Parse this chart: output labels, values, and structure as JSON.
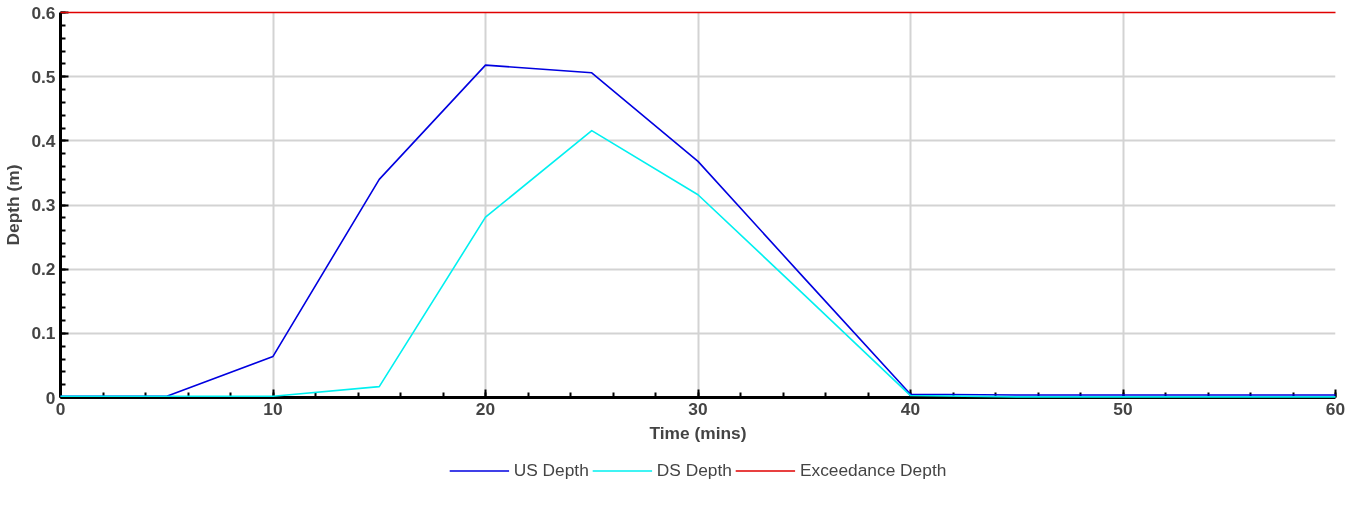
{
  "chart_data": {
    "type": "line",
    "xlabel": "Time (mins)",
    "ylabel": "Depth (m)",
    "x": [
      0,
      5,
      10,
      15,
      20,
      25,
      30,
      35,
      40,
      45,
      50,
      55,
      60
    ],
    "series": [
      {
        "name": "US Depth",
        "color": "#0000e0",
        "values": [
          0.002,
          0.002,
          0.064,
          0.34,
          0.518,
          0.506,
          0.368,
          0.186,
          0.005,
          0.004,
          0.004,
          0.004,
          0.004
        ]
      },
      {
        "name": "DS Depth",
        "color": "#00f0f0",
        "values": [
          0.002,
          0.002,
          0.002,
          0.017,
          0.281,
          0.416,
          0.316,
          0.16,
          0.003,
          0.001,
          0.001,
          0.001,
          0.001
        ]
      },
      {
        "name": "Exceedance Depth",
        "color": "#e00000",
        "values": [
          0.6,
          0.6,
          0.6,
          0.6,
          0.6,
          0.6,
          0.6,
          0.6,
          0.6,
          0.6,
          0.6,
          0.6,
          0.6
        ]
      }
    ],
    "xlim": [
      0,
      60
    ],
    "xticks": [
      0,
      10,
      20,
      30,
      40,
      50,
      60
    ],
    "ylim": [
      0,
      0.6
    ],
    "yticks": [
      0,
      0.1,
      0.2,
      0.3,
      0.4,
      0.5,
      0.6
    ],
    "grid": true,
    "legend": "bottom",
    "marker": "none",
    "line_style": "solid"
  }
}
